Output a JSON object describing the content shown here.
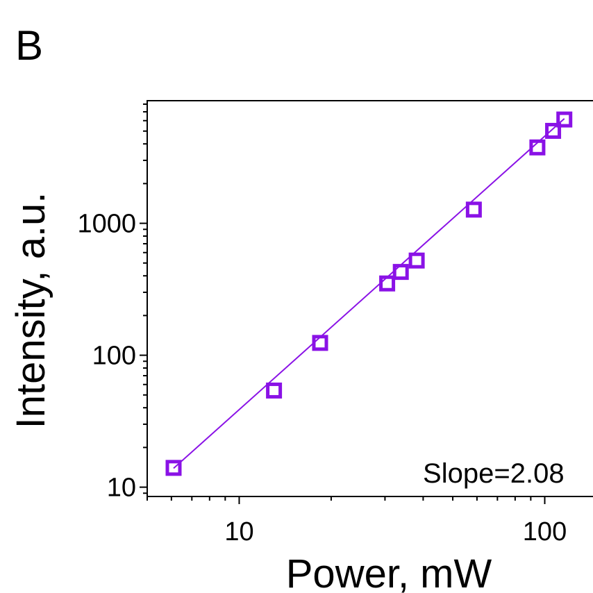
{
  "panel_label": "B",
  "chart_data": {
    "type": "scatter",
    "xlabel": "Power, mW",
    "ylabel": "Intensity, a.u.",
    "x_scale": "log",
    "y_scale": "log",
    "xlim": [
      5.0,
      150
    ],
    "ylim": [
      8.5,
      8500
    ],
    "x_tick_labels": [
      {
        "value": 10,
        "label": "10"
      },
      {
        "value": 100,
        "label": "100"
      }
    ],
    "y_tick_labels": [
      {
        "value": 10,
        "label": "10"
      },
      {
        "value": 100,
        "label": "100"
      },
      {
        "value": 1000,
        "label": "1000"
      }
    ],
    "grid": false,
    "series": [
      {
        "x": [
          6.1,
          13.0,
          18.4,
          30.5,
          33.8,
          38.1,
          58.6,
          94.6,
          106.5,
          115.9
        ],
        "y": [
          14,
          54,
          124,
          350,
          428,
          522,
          1270,
          3760,
          5020,
          6120
        ],
        "marker": "open-square",
        "color": "#8a12e6"
      }
    ],
    "fit_line": {
      "x": [
        6.1,
        115.9
      ],
      "y": [
        13.9,
        6210
      ],
      "color": "#8a12e6"
    },
    "annotations": [
      {
        "text": "Slope=2.08",
        "x": 68,
        "y": 13
      }
    ]
  }
}
